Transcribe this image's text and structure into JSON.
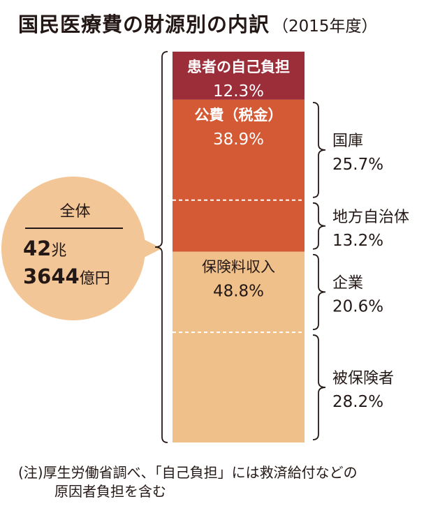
{
  "title": "国民医療費の財源別の内訳",
  "year": "（2015年度）",
  "total": {
    "label": "全体",
    "value_line1": "42",
    "unit_line1": "兆",
    "value_line2": "3644",
    "unit_line2": "億円"
  },
  "chart_data": {
    "type": "bar",
    "stacked": true,
    "orientation": "vertical",
    "segments": [
      {
        "name": "患者の自己負担",
        "percent": "12.3%",
        "value": 12.3,
        "color": "#9c2e3a",
        "text_color": "#ffffff",
        "label_bold": true
      },
      {
        "name": "公費（税金）",
        "percent": "38.9%",
        "value": 38.9,
        "color": "#d45a35",
        "text_color": "#ffffff",
        "label_bold": true
      },
      {
        "name": "保険料収入",
        "percent": "48.8%",
        "value": 48.8,
        "color": "#f0c08b",
        "text_color": "#231815",
        "label_bold": false
      }
    ],
    "sub_segments": [
      {
        "name": "国庫",
        "percent": "25.7%",
        "value": 25.7,
        "parent": "公費（税金）"
      },
      {
        "name": "地方自治体",
        "percent": "13.2%",
        "value": 13.2,
        "parent": "公費（税金）"
      },
      {
        "name": "企業",
        "percent": "20.6%",
        "value": 20.6,
        "parent": "保険料収入"
      },
      {
        "name": "被保険者",
        "percent": "28.2%",
        "value": 28.2,
        "parent": "保険料収入"
      }
    ]
  },
  "note": {
    "line1": "(注)厚生労働省調べ、「自己負担」には救済給付などの",
    "line2": "原因者負担を含む"
  }
}
